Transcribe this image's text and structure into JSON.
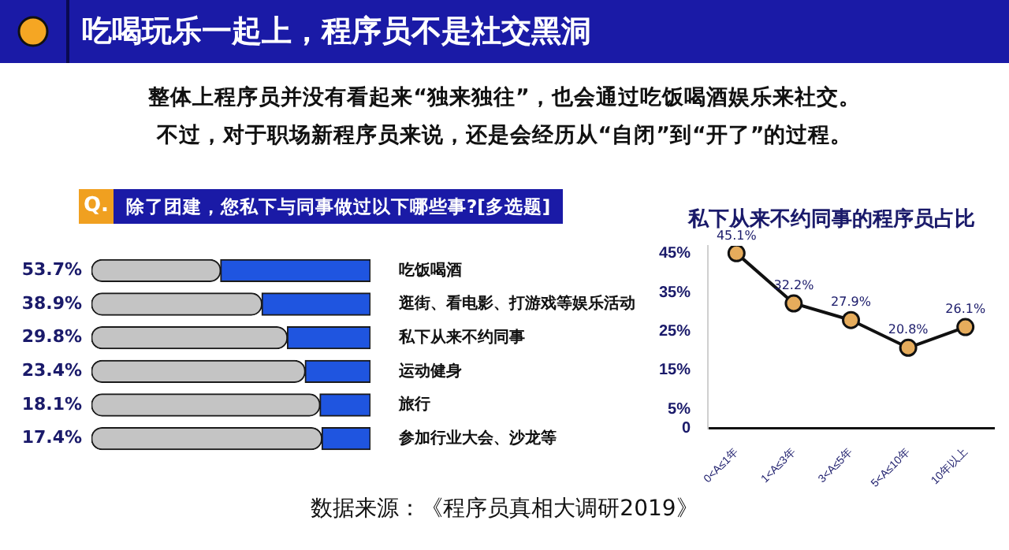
{
  "chart_data": [
    {
      "type": "bar",
      "orientation": "horizontal",
      "title": "吃喝玩乐一起上，程序员不是社交黑洞",
      "subtitle": "整体上程序员并没有看起来“独来独往”，也会通过吃饭喝酒娱乐来社交。",
      "annotations": [
        "Q.",
        "除了团建，您私下与同事做过以下哪些事?[多选题]",
        "数据来源：《程序员真相大调研2019》",
        "不过，对于职场新程序员来说，还是会经历从“自闭”到“开了”的过程。"
      ],
      "categories": [
        "吃饭喝酒",
        "逛街、看电影、打游戏等娱乐活动",
        "私下从来不约同事",
        "运动健身",
        "旅行",
        "参加行业大会、沙龙等"
      ],
      "series": [
        {
          "color": "#1f55e0",
          "values": [
            53.7,
            38.9,
            29.8,
            23.4,
            18.1,
            17.4
          ],
          "value_labels": [
            "53.7%",
            "38.9%",
            "29.8%",
            "23.4%",
            "18.1%",
            "17.4%"
          ]
        },
        {
          "color": "#c4c4c4",
          "values": [
            46.3,
            61.1,
            70.2,
            76.6,
            81.9,
            82.6
          ]
        }
      ],
      "stacked": true,
      "xlim": [
        100,
        0
      ],
      "tick_labels": "y",
      "grid": false,
      "legend": false
    },
    {
      "type": "line",
      "title": "私下从来不约同事的程序员占比",
      "categories": [
        "0<A≤1年",
        "1<A≤3年",
        "3<A≤5年",
        "5<A≤10年",
        "10年以上"
      ],
      "values": [
        45.1,
        32.2,
        27.9,
        20.8,
        26.1
      ],
      "value_labels": [
        "45.1%",
        "32.2%",
        "27.9%",
        "20.8%",
        "26.1%"
      ],
      "color": "#111111",
      "colors": [
        "#e6ac5c",
        "#e6ac5c",
        "#e6ac5c",
        "#e6ac5c",
        "#e6ac5c"
      ],
      "marker": "circle",
      "line_style": "solid",
      "ylim": [
        0,
        47
      ],
      "yticks": [
        0,
        {
          "value": 5,
          "label": "5%"
        },
        {
          "value": 15,
          "label": "15%"
        },
        {
          "value": 25,
          "label": "25%"
        },
        {
          "value": 35,
          "label": "35%"
        },
        {
          "value": 45,
          "label": "45%"
        }
      ],
      "grid": false,
      "legend": false
    }
  ]
}
